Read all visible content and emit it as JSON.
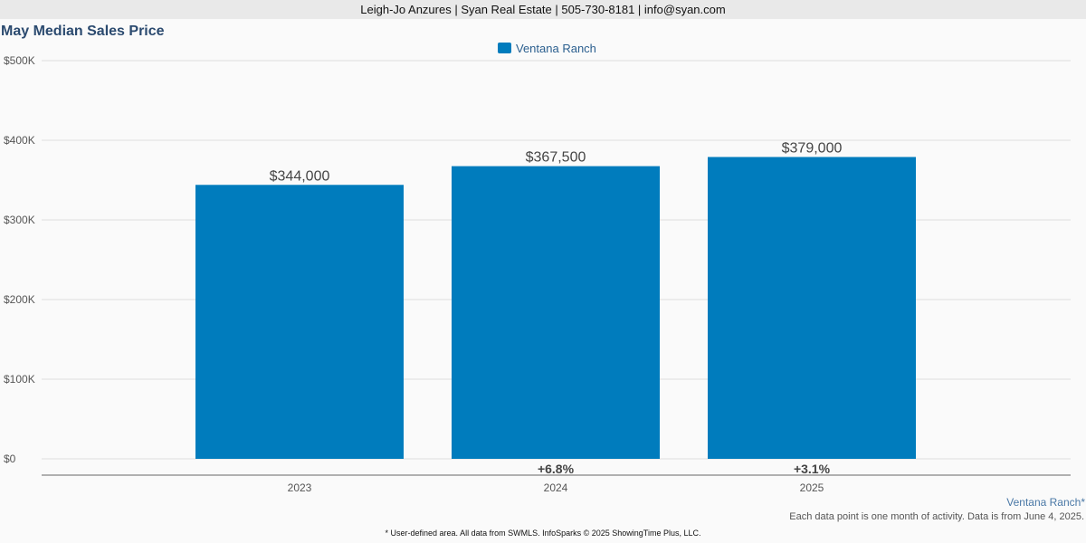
{
  "header": {
    "contact": "Leigh-Jo Anzures | Syan Real Estate | 505-730-8181 | info@syan.com"
  },
  "colors": {
    "bar": "#007cbd",
    "grid": "#dddddd",
    "axis": "#666666",
    "text": "#444444"
  },
  "chart_data": {
    "type": "bar",
    "title": "May Median Sales Price",
    "categories": [
      "2023",
      "2024",
      "2025"
    ],
    "series": [
      {
        "name": "Ventana Ranch",
        "values": [
          344000,
          367500,
          379000
        ],
        "data_labels": [
          "$344,000",
          "$367,500",
          "$379,000"
        ],
        "change_labels": [
          "",
          "+6.8%",
          "+3.1%"
        ]
      }
    ],
    "y_ticks": [
      {
        "value": 0,
        "label": "$0"
      },
      {
        "value": 100000,
        "label": "$100K"
      },
      {
        "value": 200000,
        "label": "$200K"
      },
      {
        "value": 300000,
        "label": "$300K"
      },
      {
        "value": 400000,
        "label": "$400K"
      },
      {
        "value": 500000,
        "label": "$500K"
      }
    ],
    "ylim": [
      0,
      500000
    ],
    "grid": true,
    "legend": "top-center"
  },
  "notes": {
    "area_label": "Ventana Ranch*",
    "activity": "Each data point is one month of activity. Data is from June 4, 2025.",
    "footer": "* User-defined area. All data from SWMLS. InfoSparks © 2025 ShowingTime Plus, LLC."
  }
}
